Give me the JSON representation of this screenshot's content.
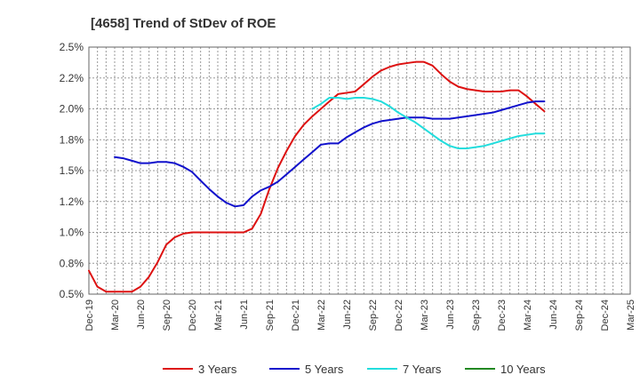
{
  "chart_data": {
    "type": "line",
    "title": "[4658]  Trend of StDev of ROE",
    "xlabel": "",
    "ylabel": "",
    "x": [
      "Dec-19",
      "Mar-20",
      "Jun-20",
      "Sep-20",
      "Dec-20",
      "Mar-21",
      "Jun-21",
      "Sep-21",
      "Dec-21",
      "Mar-22",
      "Jun-22",
      "Sep-22",
      "Dec-22",
      "Mar-23",
      "Jun-23",
      "Sep-23",
      "Dec-23",
      "Mar-24",
      "Jun-24",
      "Sep-24",
      "Dec-24",
      "Mar-25"
    ],
    "y_ticks": [
      "0.5%",
      "0.8%",
      "1.0%",
      "1.2%",
      "1.5%",
      "1.8%",
      "2.0%",
      "2.2%",
      "2.5%"
    ],
    "ylim": [
      0.5,
      2.5
    ],
    "grid": true,
    "legend_position": "bottom",
    "series": [
      {
        "name": "3 Years",
        "color": "#dd1111",
        "points": [
          [
            0,
            0.69
          ],
          [
            0.33,
            0.56
          ],
          [
            0.67,
            0.52
          ],
          [
            1,
            0.52
          ],
          [
            1.33,
            0.52
          ],
          [
            1.67,
            0.52
          ],
          [
            2,
            0.56
          ],
          [
            2.33,
            0.64
          ],
          [
            2.67,
            0.76
          ],
          [
            3,
            0.9
          ],
          [
            3.33,
            0.96
          ],
          [
            3.67,
            0.99
          ],
          [
            4,
            1.0
          ],
          [
            4.33,
            1.0
          ],
          [
            5,
            1.0
          ],
          [
            5.67,
            1.0
          ],
          [
            6,
            1.0
          ],
          [
            6.33,
            1.03
          ],
          [
            6.67,
            1.15
          ],
          [
            7,
            1.35
          ],
          [
            7.33,
            1.52
          ],
          [
            7.67,
            1.66
          ],
          [
            8,
            1.78
          ],
          [
            8.33,
            1.87
          ],
          [
            8.67,
            1.94
          ],
          [
            9,
            2.0
          ],
          [
            9.33,
            2.06
          ],
          [
            9.67,
            2.12
          ],
          [
            10,
            2.13
          ],
          [
            10.33,
            2.14
          ],
          [
            10.67,
            2.2
          ],
          [
            11,
            2.26
          ],
          [
            11.33,
            2.31
          ],
          [
            11.67,
            2.34
          ],
          [
            12,
            2.36
          ],
          [
            12.33,
            2.37
          ],
          [
            12.67,
            2.38
          ],
          [
            13,
            2.38
          ],
          [
            13.33,
            2.35
          ],
          [
            13.67,
            2.28
          ],
          [
            14,
            2.22
          ],
          [
            14.33,
            2.18
          ],
          [
            14.67,
            2.16
          ],
          [
            15,
            2.15
          ],
          [
            15.33,
            2.14
          ],
          [
            15.67,
            2.14
          ],
          [
            16,
            2.14
          ],
          [
            16.33,
            2.15
          ],
          [
            16.67,
            2.15
          ],
          [
            17,
            2.1
          ],
          [
            17.33,
            2.04
          ],
          [
            17.67,
            1.98
          ]
        ]
      },
      {
        "name": "5 Years",
        "color": "#1111cc",
        "points": [
          [
            1,
            1.61
          ],
          [
            1.33,
            1.6
          ],
          [
            1.67,
            1.58
          ],
          [
            2,
            1.56
          ],
          [
            2.33,
            1.56
          ],
          [
            2.67,
            1.57
          ],
          [
            3,
            1.57
          ],
          [
            3.33,
            1.56
          ],
          [
            3.67,
            1.53
          ],
          [
            4,
            1.49
          ],
          [
            4.33,
            1.42
          ],
          [
            4.67,
            1.35
          ],
          [
            5,
            1.29
          ],
          [
            5.33,
            1.24
          ],
          [
            5.67,
            1.21
          ],
          [
            6,
            1.22
          ],
          [
            6.33,
            1.29
          ],
          [
            6.67,
            1.34
          ],
          [
            7,
            1.37
          ],
          [
            7.33,
            1.41
          ],
          [
            7.67,
            1.47
          ],
          [
            8,
            1.53
          ],
          [
            8.33,
            1.59
          ],
          [
            8.67,
            1.65
          ],
          [
            9,
            1.71
          ],
          [
            9.33,
            1.72
          ],
          [
            9.67,
            1.72
          ],
          [
            10,
            1.77
          ],
          [
            10.33,
            1.81
          ],
          [
            10.67,
            1.85
          ],
          [
            11,
            1.88
          ],
          [
            11.33,
            1.9
          ],
          [
            11.67,
            1.91
          ],
          [
            12,
            1.92
          ],
          [
            12.33,
            1.93
          ],
          [
            12.67,
            1.93
          ],
          [
            13,
            1.93
          ],
          [
            13.33,
            1.92
          ],
          [
            13.67,
            1.92
          ],
          [
            14,
            1.92
          ],
          [
            14.33,
            1.93
          ],
          [
            14.67,
            1.94
          ],
          [
            15,
            1.95
          ],
          [
            15.33,
            1.96
          ],
          [
            15.67,
            1.97
          ],
          [
            16,
            1.99
          ],
          [
            16.33,
            2.01
          ],
          [
            16.67,
            2.03
          ],
          [
            17,
            2.05
          ],
          [
            17.33,
            2.06
          ],
          [
            17.67,
            2.06
          ]
        ]
      },
      {
        "name": "7 Years",
        "color": "#22dddd",
        "points": [
          [
            8.67,
            2.0
          ],
          [
            9,
            2.04
          ],
          [
            9.33,
            2.09
          ],
          [
            9.67,
            2.09
          ],
          [
            10,
            2.08
          ],
          [
            10.33,
            2.09
          ],
          [
            10.67,
            2.09
          ],
          [
            11,
            2.08
          ],
          [
            11.33,
            2.06
          ],
          [
            11.67,
            2.02
          ],
          [
            12,
            1.97
          ],
          [
            12.33,
            1.93
          ],
          [
            12.67,
            1.89
          ],
          [
            13,
            1.84
          ],
          [
            13.33,
            1.79
          ],
          [
            13.67,
            1.74
          ],
          [
            14,
            1.7
          ],
          [
            14.33,
            1.68
          ],
          [
            14.67,
            1.68
          ],
          [
            15,
            1.69
          ],
          [
            15.33,
            1.7
          ],
          [
            15.67,
            1.72
          ],
          [
            16,
            1.74
          ],
          [
            16.33,
            1.76
          ],
          [
            16.67,
            1.78
          ],
          [
            17,
            1.79
          ],
          [
            17.33,
            1.8
          ],
          [
            17.67,
            1.8
          ]
        ]
      },
      {
        "name": "10 Years",
        "color": "#228822",
        "points": []
      }
    ]
  }
}
